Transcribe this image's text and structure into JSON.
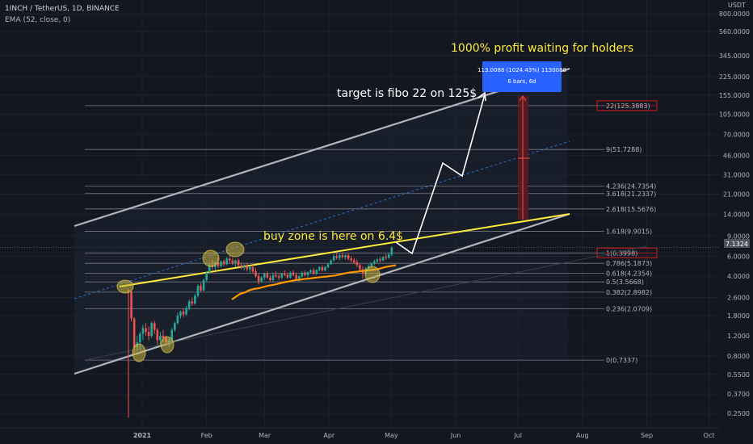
{
  "header": {
    "symbol_title": "1INCH / TetherUS, 1D, BINANCE",
    "indicator": "EMA (52, close, 0)"
  },
  "colors": {
    "background": "#131722",
    "grid": "#1e222d",
    "channel": "#b2b5be",
    "trendline": "#ffeb3b",
    "ema": "#ff9800",
    "up": "#26a69a",
    "down": "#ef5350",
    "annotation_text": "#ffeb3b",
    "target_text": "#ffffff",
    "projection": "#ffffff",
    "circle": "#c8b440",
    "fib_label_box": "#b71c1c",
    "price_tag": "#4c525e",
    "measure_box": "#2962ff"
  },
  "annotations": {
    "profit": "1000% profit waiting for holders",
    "target": "target is fibo 22 on 125$",
    "buy_zone": "buy zone is here on 6.4$"
  },
  "measure_tooltip": {
    "line1": "113.0088 (1024.43%) 1130088",
    "line2": "6 bars, 6d"
  },
  "current_price": {
    "label": "7.1324",
    "value": 7.1324
  },
  "chart_data": {
    "type": "candlestick",
    "title": "1INCH / TetherUS, 1D, BINANCE",
    "y_scale": "log",
    "ylim": [
      0.22,
      900
    ],
    "price_axis_header": "USDT",
    "y_ticks": [
      "800.0000",
      "560.0000",
      "345.0000",
      "225.0000",
      "155.0000",
      "105.0000",
      "70.0000",
      "46.0000",
      "31.0000",
      "21.0000",
      "14.0000",
      "9.0000",
      "6.0000",
      "4.0000",
      "2.6000",
      "1.8000",
      "1.2000",
      "0.8000",
      "0.5500",
      "0.3700",
      "0.2500"
    ],
    "x_ticks": [
      "2021",
      "Feb",
      "Mar",
      "Apr",
      "May",
      "Jun",
      "Jul",
      "Aug",
      "Sep",
      "Oct"
    ],
    "x_dates": [
      "2021-01-01",
      "2021-02-01",
      "2021-03-01",
      "2021-04-01",
      "2021-05-01",
      "2021-06-01",
      "2021-07-01",
      "2021-08-01",
      "2021-09-01",
      "2021-10-01"
    ],
    "fib_levels": [
      {
        "label": "22(125.3883)",
        "value": 125.3883,
        "boxed": true
      },
      {
        "label": "9(51.7288)",
        "value": 51.7288
      },
      {
        "label": "4.236(24.7354)",
        "value": 24.7354
      },
      {
        "label": "3.618(21.2337)",
        "value": 21.2337
      },
      {
        "label": "2.618(15.5676)",
        "value": 15.5676
      },
      {
        "label": "1.618(9.9015)",
        "value": 9.9015
      },
      {
        "label": "1(6.3998)",
        "value": 6.3998,
        "boxed": true
      },
      {
        "label": "0.786(5.1873)",
        "value": 5.1873
      },
      {
        "label": "0.618(4.2354)",
        "value": 4.2354
      },
      {
        "label": "0.5(3.5668)",
        "value": 3.5668
      },
      {
        "label": "0.382(2.8982)",
        "value": 2.8982
      },
      {
        "label": "0.236(2.0709)",
        "value": 2.0709
      },
      {
        "label": "0(0.7337)",
        "value": 0.7337
      }
    ],
    "candles": [
      {
        "o": 3.0,
        "h": 3.1,
        "l": 0.23,
        "c": 2.9
      },
      {
        "o": 2.9,
        "h": 3.0,
        "l": 1.6,
        "c": 1.7
      },
      {
        "o": 1.7,
        "h": 1.75,
        "l": 0.85,
        "c": 0.95
      },
      {
        "o": 0.95,
        "h": 1.2,
        "l": 0.88,
        "c": 1.05
      },
      {
        "o": 1.05,
        "h": 1.3,
        "l": 0.9,
        "c": 1.25
      },
      {
        "o": 1.25,
        "h": 1.5,
        "l": 1.1,
        "c": 1.4
      },
      {
        "o": 1.4,
        "h": 1.55,
        "l": 1.2,
        "c": 1.3
      },
      {
        "o": 1.3,
        "h": 1.45,
        "l": 1.1,
        "c": 1.2
      },
      {
        "o": 1.2,
        "h": 1.6,
        "l": 1.15,
        "c": 1.55
      },
      {
        "o": 1.55,
        "h": 1.62,
        "l": 1.25,
        "c": 1.35
      },
      {
        "o": 1.35,
        "h": 1.4,
        "l": 1.0,
        "c": 1.1
      },
      {
        "o": 1.1,
        "h": 1.3,
        "l": 1.0,
        "c": 1.2
      },
      {
        "o": 1.2,
        "h": 1.35,
        "l": 1.05,
        "c": 1.15
      },
      {
        "o": 1.15,
        "h": 1.2,
        "l": 0.98,
        "c": 1.05
      },
      {
        "o": 1.05,
        "h": 1.15,
        "l": 0.95,
        "c": 1.1
      },
      {
        "o": 1.1,
        "h": 1.4,
        "l": 1.05,
        "c": 1.35
      },
      {
        "o": 1.35,
        "h": 1.6,
        "l": 1.3,
        "c": 1.55
      },
      {
        "o": 1.55,
        "h": 1.9,
        "l": 1.5,
        "c": 1.8
      },
      {
        "o": 1.8,
        "h": 2.0,
        "l": 1.7,
        "c": 1.95
      },
      {
        "o": 1.95,
        "h": 2.1,
        "l": 1.75,
        "c": 1.85
      },
      {
        "o": 1.85,
        "h": 2.2,
        "l": 1.8,
        "c": 2.1
      },
      {
        "o": 2.1,
        "h": 2.5,
        "l": 2.0,
        "c": 2.4
      },
      {
        "o": 2.4,
        "h": 2.6,
        "l": 2.2,
        "c": 2.3
      },
      {
        "o": 2.3,
        "h": 2.8,
        "l": 2.25,
        "c": 2.7
      },
      {
        "o": 2.7,
        "h": 3.4,
        "l": 2.6,
        "c": 3.3
      },
      {
        "o": 3.3,
        "h": 3.5,
        "l": 2.9,
        "c": 3.0
      },
      {
        "o": 3.0,
        "h": 3.8,
        "l": 2.95,
        "c": 3.7
      },
      {
        "o": 3.7,
        "h": 4.4,
        "l": 3.6,
        "c": 4.3
      },
      {
        "o": 4.3,
        "h": 5.2,
        "l": 4.2,
        "c": 5.0
      },
      {
        "o": 5.0,
        "h": 5.6,
        "l": 4.6,
        "c": 4.8
      },
      {
        "o": 4.8,
        "h": 5.4,
        "l": 4.5,
        "c": 5.3
      },
      {
        "o": 5.3,
        "h": 5.8,
        "l": 4.7,
        "c": 4.9
      },
      {
        "o": 4.9,
        "h": 5.5,
        "l": 4.8,
        "c": 5.4
      },
      {
        "o": 5.4,
        "h": 5.6,
        "l": 4.9,
        "c": 5.1
      },
      {
        "o": 5.1,
        "h": 5.9,
        "l": 5.0,
        "c": 5.7
      },
      {
        "o": 5.7,
        "h": 6.0,
        "l": 5.2,
        "c": 5.5
      },
      {
        "o": 5.5,
        "h": 5.8,
        "l": 5.0,
        "c": 5.2
      },
      {
        "o": 5.2,
        "h": 5.6,
        "l": 4.8,
        "c": 5.5
      },
      {
        "o": 5.5,
        "h": 5.7,
        "l": 4.9,
        "c": 5.0
      },
      {
        "o": 5.0,
        "h": 5.3,
        "l": 4.6,
        "c": 4.8
      },
      {
        "o": 4.8,
        "h": 5.1,
        "l": 4.5,
        "c": 4.9
      },
      {
        "o": 4.9,
        "h": 5.2,
        "l": 4.4,
        "c": 4.6
      },
      {
        "o": 4.6,
        "h": 4.9,
        "l": 4.3,
        "c": 4.8
      },
      {
        "o": 4.8,
        "h": 5.0,
        "l": 4.2,
        "c": 4.4
      },
      {
        "o": 4.4,
        "h": 4.7,
        "l": 3.9,
        "c": 4.0
      },
      {
        "o": 4.0,
        "h": 4.2,
        "l": 3.4,
        "c": 3.6
      },
      {
        "o": 3.6,
        "h": 4.0,
        "l": 3.5,
        "c": 3.9
      },
      {
        "o": 3.9,
        "h": 4.3,
        "l": 3.7,
        "c": 4.2
      },
      {
        "o": 4.2,
        "h": 4.4,
        "l": 3.8,
        "c": 3.9
      },
      {
        "o": 3.9,
        "h": 4.1,
        "l": 3.6,
        "c": 3.7
      },
      {
        "o": 3.7,
        "h": 4.3,
        "l": 3.6,
        "c": 4.1
      },
      {
        "o": 4.1,
        "h": 4.4,
        "l": 3.9,
        "c": 4.0
      },
      {
        "o": 4.0,
        "h": 4.2,
        "l": 3.7,
        "c": 3.9
      },
      {
        "o": 3.9,
        "h": 4.3,
        "l": 3.8,
        "c": 4.2
      },
      {
        "o": 4.2,
        "h": 4.5,
        "l": 4.0,
        "c": 4.1
      },
      {
        "o": 4.1,
        "h": 4.3,
        "l": 3.8,
        "c": 3.9
      },
      {
        "o": 3.9,
        "h": 4.4,
        "l": 3.8,
        "c": 4.3
      },
      {
        "o": 4.3,
        "h": 4.5,
        "l": 4.0,
        "c": 4.1
      },
      {
        "o": 4.1,
        "h": 4.3,
        "l": 3.7,
        "c": 3.8
      },
      {
        "o": 3.8,
        "h": 4.1,
        "l": 3.6,
        "c": 4.0
      },
      {
        "o": 4.0,
        "h": 4.4,
        "l": 3.9,
        "c": 4.3
      },
      {
        "o": 4.3,
        "h": 4.5,
        "l": 4.0,
        "c": 4.1
      },
      {
        "o": 4.1,
        "h": 4.4,
        "l": 3.9,
        "c": 4.35
      },
      {
        "o": 4.35,
        "h": 4.6,
        "l": 4.2,
        "c": 4.5
      },
      {
        "o": 4.5,
        "h": 4.7,
        "l": 4.1,
        "c": 4.2
      },
      {
        "o": 4.2,
        "h": 4.6,
        "l": 4.1,
        "c": 4.55
      },
      {
        "o": 4.55,
        "h": 4.9,
        "l": 4.4,
        "c": 4.8
      },
      {
        "o": 4.8,
        "h": 5.0,
        "l": 4.4,
        "c": 4.5
      },
      {
        "o": 4.5,
        "h": 4.9,
        "l": 4.4,
        "c": 4.8
      },
      {
        "o": 4.8,
        "h": 5.2,
        "l": 4.7,
        "c": 5.1
      },
      {
        "o": 5.1,
        "h": 5.6,
        "l": 5.0,
        "c": 5.5
      },
      {
        "o": 5.5,
        "h": 6.2,
        "l": 5.4,
        "c": 6.0
      },
      {
        "o": 6.0,
        "h": 6.4,
        "l": 5.6,
        "c": 5.8
      },
      {
        "o": 5.8,
        "h": 6.3,
        "l": 5.5,
        "c": 6.1
      },
      {
        "o": 6.1,
        "h": 6.4,
        "l": 5.7,
        "c": 5.9
      },
      {
        "o": 5.9,
        "h": 6.2,
        "l": 5.6,
        "c": 6.1
      },
      {
        "o": 6.1,
        "h": 6.3,
        "l": 5.5,
        "c": 5.7
      },
      {
        "o": 5.7,
        "h": 6.0,
        "l": 5.3,
        "c": 5.5
      },
      {
        "o": 5.5,
        "h": 5.8,
        "l": 5.1,
        "c": 5.3
      },
      {
        "o": 5.3,
        "h": 5.6,
        "l": 4.8,
        "c": 5.0
      },
      {
        "o": 5.0,
        "h": 5.2,
        "l": 4.4,
        "c": 4.6
      },
      {
        "o": 4.6,
        "h": 4.9,
        "l": 3.8,
        "c": 4.2
      },
      {
        "o": 4.2,
        "h": 4.8,
        "l": 4.1,
        "c": 4.7
      },
      {
        "o": 4.7,
        "h": 5.1,
        "l": 4.5,
        "c": 4.9
      },
      {
        "o": 4.9,
        "h": 5.3,
        "l": 4.7,
        "c": 5.2
      },
      {
        "o": 5.2,
        "h": 5.6,
        "l": 5.0,
        "c": 5.4
      },
      {
        "o": 5.4,
        "h": 5.8,
        "l": 5.2,
        "c": 5.6
      },
      {
        "o": 5.6,
        "h": 5.9,
        "l": 5.3,
        "c": 5.5
      },
      {
        "o": 5.5,
        "h": 6.0,
        "l": 5.4,
        "c": 5.9
      },
      {
        "o": 5.9,
        "h": 6.2,
        "l": 5.6,
        "c": 5.8
      },
      {
        "o": 5.8,
        "h": 6.4,
        "l": 5.7,
        "c": 6.2
      },
      {
        "o": 6.2,
        "h": 7.3,
        "l": 6.0,
        "c": 7.13
      }
    ],
    "ema_series": [
      2.5,
      2.6,
      2.7,
      2.8,
      2.85,
      2.9,
      3.0,
      3.05,
      3.1,
      3.12,
      3.15,
      3.2,
      3.25,
      3.3,
      3.33,
      3.36,
      3.4,
      3.45,
      3.5,
      3.55,
      3.58,
      3.62,
      3.66,
      3.7,
      3.72,
      3.75,
      3.78,
      3.8,
      3.82,
      3.85,
      3.88,
      3.9,
      3.93,
      3.95,
      3.97,
      4.0,
      4.03,
      4.05,
      4.1,
      4.15,
      4.2,
      4.25,
      4.3,
      4.33,
      4.36,
      4.38,
      4.42,
      4.45,
      4.48,
      4.5,
      4.53,
      4.56,
      4.6,
      4.65,
      4.72,
      4.8,
      4.85,
      4.9,
      4.95,
      5.0
    ]
  }
}
